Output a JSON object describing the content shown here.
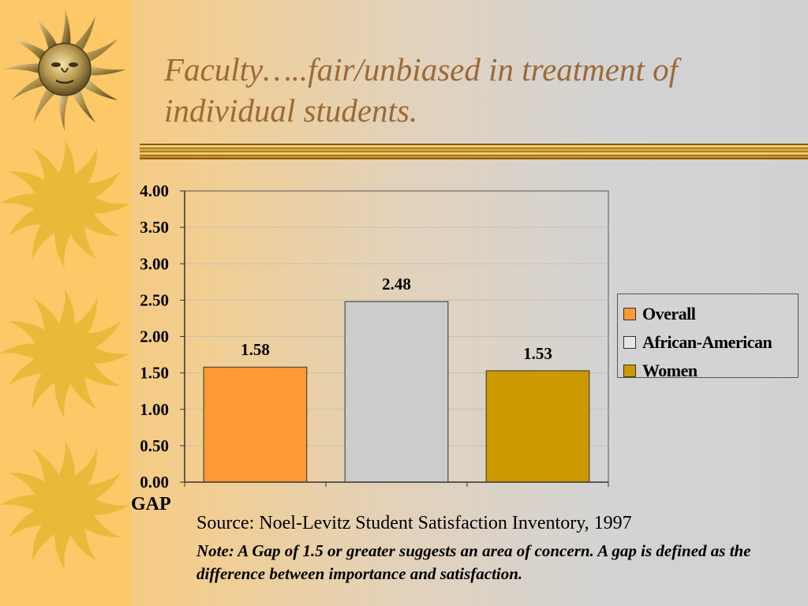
{
  "slide": {
    "title": "Faculty…..fair/unbiased in treatment of individual students.",
    "gap_label": "GAP",
    "source": "Source: Noel-Levitz Student Satisfaction Inventory, 1997",
    "note": "Note:  A Gap of 1.5 or greater suggests an area of concern.  A gap is defined as the difference between importance and satisfaction."
  },
  "decorations": [
    "sun-face-icon",
    "sun-icon"
  ],
  "colors": {
    "title": "#9b6a37",
    "left_strip": "#fdc867",
    "sun": "#e9b93a",
    "rule": "#d2a233"
  },
  "chart_data": {
    "type": "bar",
    "title": "",
    "xlabel": "",
    "ylabel": "GAP",
    "ylim": [
      0,
      4
    ],
    "yticks": [
      "0.00",
      "0.50",
      "1.00",
      "1.50",
      "2.00",
      "2.50",
      "3.00",
      "3.50",
      "4.00"
    ],
    "grid": true,
    "legend_position": "right",
    "series": [
      {
        "name": "Overall",
        "value": 1.58,
        "label": "1.58",
        "color": "#ff9933"
      },
      {
        "name": "African-American",
        "value": 2.48,
        "label": "2.48",
        "color": "#cccccc"
      },
      {
        "name": "Women",
        "value": 1.53,
        "label": "1.53",
        "color": "#cc9900"
      }
    ]
  }
}
